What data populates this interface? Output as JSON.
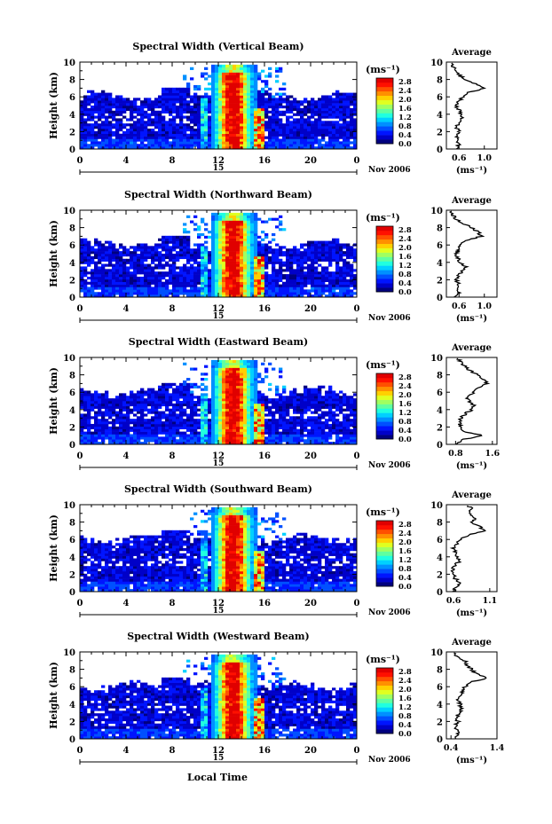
{
  "figure": {
    "xlabel": "Local Time",
    "ylabel": "Height (km)",
    "date_label": "Nov 2006",
    "unit_label": "(ms⁻¹)",
    "avg_title": "Average",
    "avg_xlabel": "(ms⁻¹)",
    "day_marker": "15"
  },
  "colorbar": {
    "ticks": [
      "0.0",
      "0.4",
      "0.8",
      "1.2",
      "1.6",
      "2.0",
      "2.4",
      "2.8"
    ],
    "colors": [
      "#00007f",
      "#0000c8",
      "#0014ff",
      "#0050ff",
      "#0090ff",
      "#00d0ff",
      "#20ffe0",
      "#60ffa0",
      "#a0ff60",
      "#e0ff20",
      "#ffd000",
      "#ff9000",
      "#ff5000",
      "#ff1000",
      "#e00000"
    ]
  },
  "chart_data": [
    {
      "type": "heatmap",
      "title": "Spectral Width (Vertical Beam)",
      "xlim": [
        0,
        24
      ],
      "ylim": [
        0,
        10
      ],
      "xticks": [
        "0",
        "4",
        "8",
        "12",
        "16",
        "20",
        "0"
      ],
      "yticks": [
        "0",
        "2",
        "4",
        "6",
        "8",
        "10"
      ],
      "colorbar_range": [
        0.0,
        2.8
      ],
      "average_profile": {
        "xlim": [
          0.4,
          1.2
        ],
        "xticks": [
          "0.6",
          "1.0"
        ],
        "height_km": [
          0,
          0.5,
          1,
          1.5,
          2,
          2.5,
          3,
          3.5,
          4,
          4.5,
          5,
          5.5,
          6,
          6.5,
          7,
          7.5,
          8,
          8.5,
          9,
          9.5,
          10
        ],
        "value": [
          0.55,
          0.6,
          0.58,
          0.55,
          0.6,
          0.55,
          0.6,
          0.65,
          0.62,
          0.6,
          0.55,
          0.6,
          0.65,
          0.75,
          1.0,
          0.85,
          0.7,
          0.6,
          0.55,
          0.5,
          0.45
        ]
      }
    },
    {
      "type": "heatmap",
      "title": "Spectral Width (Northward Beam)",
      "xlim": [
        0,
        24
      ],
      "ylim": [
        0,
        10
      ],
      "xticks": [
        "0",
        "4",
        "8",
        "12",
        "16",
        "20",
        "0"
      ],
      "yticks": [
        "0",
        "2",
        "4",
        "6",
        "8",
        "10"
      ],
      "colorbar_range": [
        0.0,
        2.8
      ],
      "average_profile": {
        "xlim": [
          0.4,
          1.2
        ],
        "xticks": [
          "0.6",
          "1.0"
        ],
        "height_km": [
          0,
          0.5,
          1,
          1.5,
          2,
          2.5,
          3,
          3.5,
          4,
          4.5,
          5,
          5.5,
          6,
          6.5,
          7,
          7.5,
          8,
          8.5,
          9,
          9.5,
          10
        ],
        "value": [
          0.55,
          0.6,
          0.58,
          0.6,
          0.55,
          0.6,
          0.65,
          0.7,
          0.62,
          0.58,
          0.55,
          0.6,
          0.62,
          0.7,
          0.95,
          0.9,
          0.8,
          0.65,
          0.55,
          0.5,
          0.45
        ]
      }
    },
    {
      "type": "heatmap",
      "title": "Spectral Width (Eastward Beam)",
      "xlim": [
        0,
        24
      ],
      "ylim": [
        0,
        10
      ],
      "xticks": [
        "0",
        "4",
        "8",
        "12",
        "16",
        "20",
        "0"
      ],
      "yticks": [
        "0",
        "2",
        "4",
        "6",
        "8",
        "10"
      ],
      "colorbar_range": [
        0.0,
        2.8
      ],
      "average_profile": {
        "xlim": [
          0.6,
          1.7
        ],
        "xticks": [
          "0.8",
          "1.6"
        ],
        "height_km": [
          0,
          0.5,
          1,
          1.5,
          2,
          2.5,
          3,
          3.5,
          4,
          4.5,
          5,
          5.5,
          6,
          6.5,
          7,
          7.5,
          8,
          8.5,
          9,
          9.5,
          10
        ],
        "value": [
          0.85,
          0.9,
          1.4,
          0.95,
          0.9,
          0.88,
          0.92,
          1.0,
          1.15,
          1.2,
          1.1,
          1.05,
          1.2,
          1.3,
          1.5,
          1.4,
          1.3,
          1.1,
          1.0,
          0.9,
          0.85
        ]
      }
    },
    {
      "type": "heatmap",
      "title": "Spectral Width (Southward Beam)",
      "xlim": [
        0,
        24
      ],
      "ylim": [
        0,
        10
      ],
      "xticks": [
        "0",
        "4",
        "8",
        "12",
        "16",
        "20",
        "0"
      ],
      "yticks": [
        "0",
        "2",
        "4",
        "6",
        "8",
        "10"
      ],
      "colorbar_range": [
        0.0,
        2.8
      ],
      "average_profile": {
        "xlim": [
          0.5,
          1.2
        ],
        "xticks": [
          "0.6",
          "1.1"
        ],
        "height_km": [
          0,
          0.5,
          1,
          1.5,
          2,
          2.5,
          3,
          3.5,
          4,
          4.5,
          5,
          5.5,
          6,
          6.5,
          7,
          7.5,
          8,
          8.5,
          9,
          9.5,
          10
        ],
        "value": [
          0.6,
          0.62,
          0.7,
          0.62,
          0.6,
          0.58,
          0.62,
          0.68,
          0.65,
          0.62,
          0.6,
          0.65,
          0.7,
          0.8,
          1.05,
          0.95,
          0.85,
          0.9,
          0.8,
          0.85,
          0.8
        ]
      }
    },
    {
      "type": "heatmap",
      "title": "Spectral Width (Westward Beam)",
      "xlim": [
        0,
        24
      ],
      "ylim": [
        0,
        10
      ],
      "xticks": [
        "0",
        "4",
        "8",
        "12",
        "16",
        "20",
        "0"
      ],
      "yticks": [
        "0",
        "2",
        "4",
        "6",
        "8",
        "10"
      ],
      "colorbar_range": [
        0.0,
        2.8
      ],
      "average_profile": {
        "xlim": [
          0.3,
          1.4
        ],
        "xticks": [
          "0.4",
          "1.4"
        ],
        "height_km": [
          0,
          0.5,
          1,
          1.5,
          2,
          2.5,
          3,
          3.5,
          4,
          4.5,
          5,
          5.5,
          6,
          6.5,
          7,
          7.5,
          8,
          8.5,
          9,
          9.5,
          10
        ],
        "value": [
          0.5,
          0.55,
          0.52,
          0.5,
          0.55,
          0.52,
          0.58,
          0.62,
          0.6,
          0.55,
          0.6,
          0.65,
          0.7,
          0.8,
          1.2,
          0.95,
          0.85,
          0.75,
          0.7,
          0.5,
          0.45
        ]
      }
    }
  ]
}
